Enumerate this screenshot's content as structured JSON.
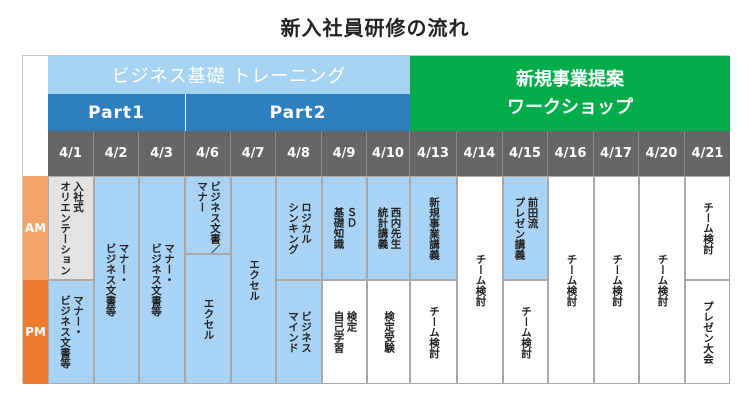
{
  "title": "新入社員研修の流れ",
  "bands": {
    "business_training": "ビジネス基礎 トレーニング",
    "part1": "Part1",
    "part2": "Part2",
    "new_business_line1": "新規事業提案",
    "new_business_line2": "ワークショップ"
  },
  "dates": [
    "4/1",
    "4/2",
    "4/3",
    "4/6",
    "4/7",
    "4/8",
    "4/9",
    "4/10",
    "4/13",
    "4/14",
    "4/15",
    "4/16",
    "4/17",
    "4/20",
    "4/21"
  ],
  "am_label": "AM",
  "pm_label": "PM",
  "sessions": {
    "d1_am": "入社式\nオリエンテーション",
    "d1_pm": "マナー・\nビジネス文書等",
    "d2": "マナー・\nビジネス文書等",
    "d3": "マナー・\nビジネス文書等",
    "d4_am": "ビジネス文書／\nマナー",
    "d4_pm": "エクセル",
    "d5": "エクセル",
    "d6_am": "ロジカル\nシンキング",
    "d6_pm": "ビジネス\nマインド",
    "d7_am": "ＳＤ\n基礎知識",
    "d7_pm": "検定\n自己学習",
    "d8_am": "西内先生\n統計講義",
    "d8_pm": "検定受験",
    "d9_am": "新規事業講義",
    "d9_pm": "チーム検討",
    "d10": "チーム検討",
    "d11_am": "前田流\nプレゼン講義",
    "d11_pm": "チーム検討",
    "d12": "チーム検討",
    "d13": "チーム検討",
    "d14": "チーム検討",
    "d15_am": "チーム検討",
    "d15_pm": "プレゼン大会"
  }
}
